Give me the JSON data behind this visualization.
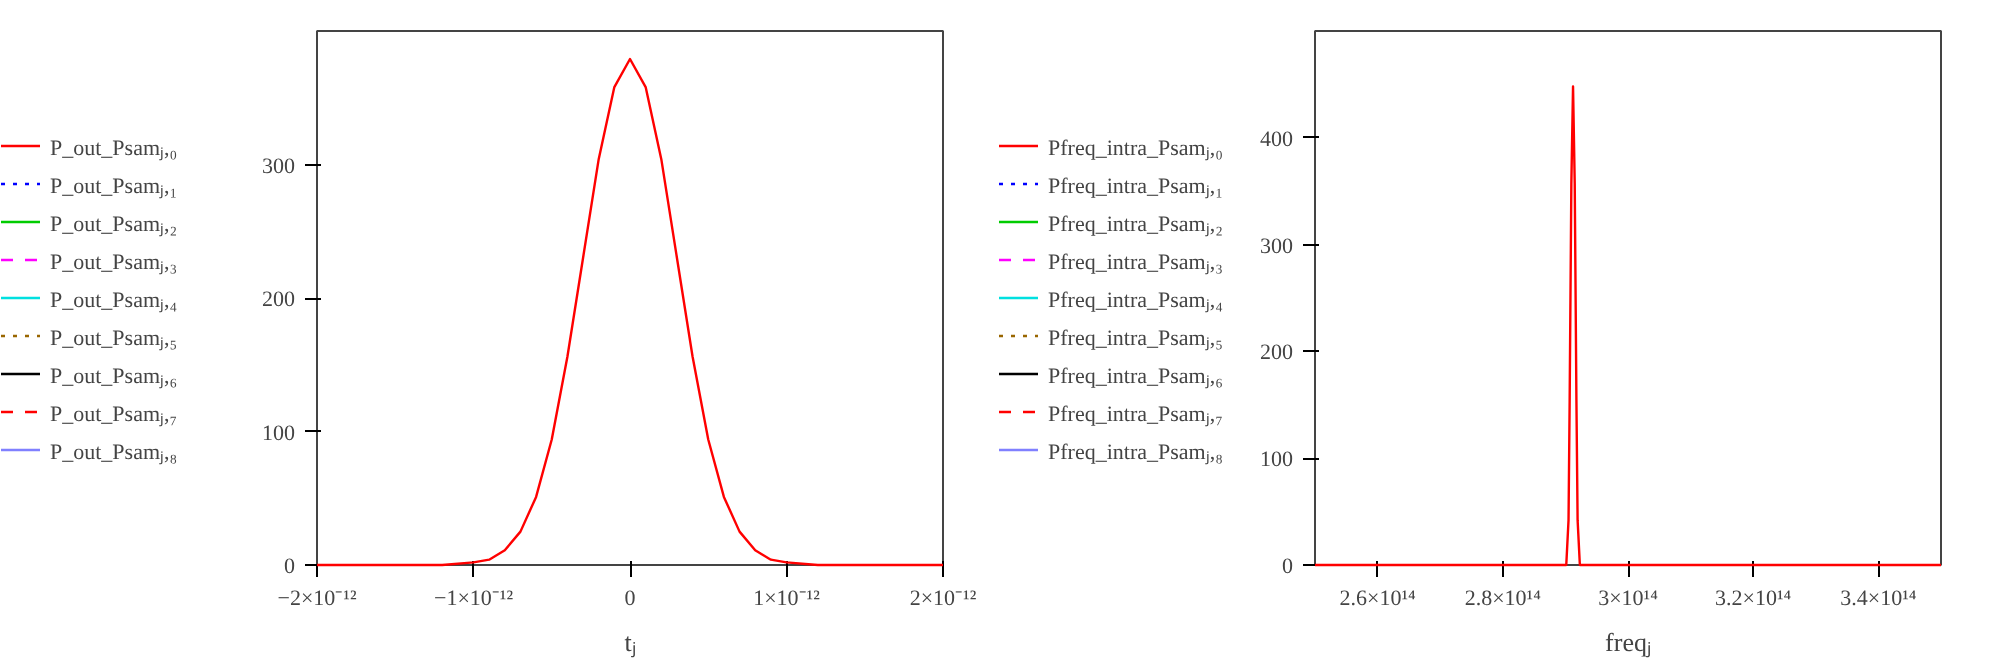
{
  "chart_data": [
    {
      "type": "line",
      "xlabel": "tⱼ",
      "xlim": [
        -2e-12,
        2e-12
      ],
      "ylim": [
        0,
        400
      ],
      "grid": false,
      "legend": "left",
      "xticks": [
        {
          "value": -2e-12,
          "label": "−2×10⁻¹²"
        },
        {
          "value": -1e-12,
          "label": "−1×10⁻¹²"
        },
        0,
        {
          "value": 1e-12,
          "label": "1×10⁻¹²"
        },
        {
          "value": 2e-12,
          "label": "2×10⁻¹²"
        }
      ],
      "yticks": [
        0,
        100,
        200,
        300
      ],
      "series": [
        {
          "name": "P_out_Psamⱼ,₀",
          "color": "#ff0000",
          "line_style": "solid",
          "x": [
            -2e-12,
            -1.2e-12,
            -1e-12,
            -9e-13,
            -8e-13,
            -7e-13,
            -6e-13,
            -5e-13,
            -4e-13,
            -3e-13,
            -2e-13,
            -1e-13,
            0,
            1e-13,
            2e-13,
            3e-13,
            4e-13,
            5e-13,
            6e-13,
            7e-13,
            8e-13,
            9e-13,
            1e-12,
            1.2e-12,
            2e-12
          ],
          "values": [
            0,
            0,
            2,
            4,
            11,
            25,
            51,
            94,
            156,
            230,
            304,
            358,
            379,
            358,
            304,
            230,
            156,
            94,
            51,
            25,
            11,
            4,
            2,
            0,
            0
          ]
        },
        {
          "name": "P_out_Psamⱼ,₁",
          "color": "#0000ff",
          "line_style": "dotted",
          "values": [
            null
          ]
        },
        {
          "name": "P_out_Psamⱼ,₂",
          "color": "#00cc00",
          "line_style": "solid",
          "values": [
            null
          ]
        },
        {
          "name": "P_out_Psamⱼ,₃",
          "color": "#ff00ff",
          "line_style": "dashed",
          "values": [
            null
          ]
        },
        {
          "name": "P_out_Psamⱼ,₄",
          "color": "#00e0e0",
          "line_style": "solid",
          "values": [
            null
          ]
        },
        {
          "name": "P_out_Psamⱼ,₅",
          "color": "#996600",
          "line_style": "dotted",
          "values": [
            null
          ]
        },
        {
          "name": "P_out_Psamⱼ,₆",
          "color": "#000000",
          "line_style": "solid",
          "values": [
            null
          ]
        },
        {
          "name": "P_out_Psamⱼ,₇",
          "color": "#ff0000",
          "line_style": "dashed",
          "values": [
            null
          ]
        },
        {
          "name": "P_out_Psamⱼ,₈",
          "color": "#8080ff",
          "line_style": "solid",
          "values": [
            null
          ]
        }
      ]
    },
    {
      "type": "line",
      "xlabel": "freqⱼ",
      "xlim": [
        250000000000000.0,
        350000000000000.0
      ],
      "ylim": [
        0,
        500
      ],
      "grid": false,
      "legend": "left",
      "xticks": [
        {
          "value": 260000000000000.0,
          "label": "2.6×10¹⁴"
        },
        {
          "value": 280000000000000.0,
          "label": "2.8×10¹⁴"
        },
        {
          "value": 300000000000000.0,
          "label": "3×10¹⁴"
        },
        {
          "value": 320000000000000.0,
          "label": "3.2×10¹⁴"
        },
        {
          "value": 340000000000000.0,
          "label": "3.4×10¹⁴"
        }
      ],
      "yticks": [
        0,
        100,
        200,
        300,
        400
      ],
      "series": [
        {
          "name": "Pfreq_intra_Psamⱼ,₀",
          "color": "#ff0000",
          "line_style": "solid",
          "x": [
            250000000000000.0,
            290140000000000.0,
            290500000000000.0,
            290680000000000.0,
            290950000000000.0,
            291220000000000.0,
            291490000000000.0,
            291760000000000.0,
            291950000000000.0,
            292310000000000.0,
            350000000000000.0
          ],
          "values": [
            0,
            0,
            42,
            154,
            357,
            448,
            357,
            154,
            42,
            0,
            0
          ]
        },
        {
          "name": "Pfreq_intra_Psamⱼ,₁",
          "color": "#0000ff",
          "line_style": "dotted",
          "values": [
            null
          ]
        },
        {
          "name": "Pfreq_intra_Psamⱼ,₂",
          "color": "#00cc00",
          "line_style": "solid",
          "values": [
            null
          ]
        },
        {
          "name": "Pfreq_intra_Psamⱼ,₃",
          "color": "#ff00ff",
          "line_style": "dashed",
          "values": [
            null
          ]
        },
        {
          "name": "Pfreq_intra_Psamⱼ,₄",
          "color": "#00e0e0",
          "line_style": "solid",
          "values": [
            null
          ]
        },
        {
          "name": "Pfreq_intra_Psamⱼ,₅",
          "color": "#996600",
          "line_style": "dotted",
          "values": [
            null
          ]
        },
        {
          "name": "Pfreq_intra_Psamⱼ,₆",
          "color": "#000000",
          "line_style": "solid",
          "values": [
            null
          ]
        },
        {
          "name": "Pfreq_intra_Psamⱼ,₇",
          "color": "#ff0000",
          "line_style": "dashed",
          "values": [
            null
          ]
        },
        {
          "name": "Pfreq_intra_Psamⱼ,₈",
          "color": "#8080ff",
          "line_style": "solid",
          "values": [
            null
          ]
        }
      ]
    }
  ]
}
